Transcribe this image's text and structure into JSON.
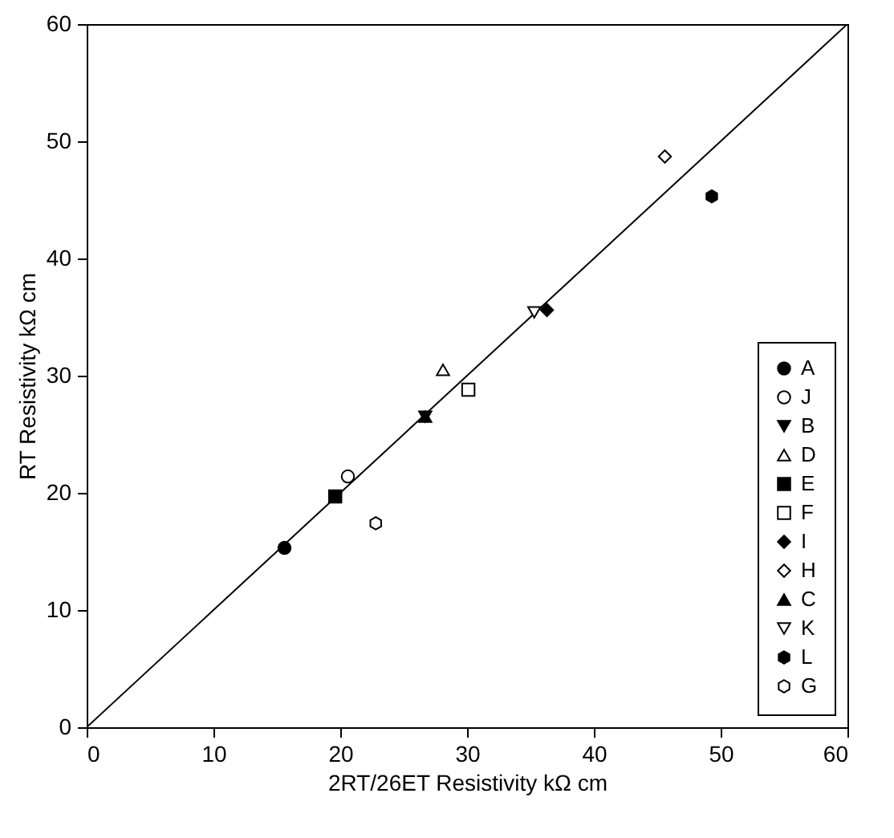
{
  "chart_data": {
    "type": "scatter",
    "xlabel": "2RT/26ET Resistivity kΩ cm",
    "ylabel": "RT Resistivity kΩ cm",
    "xlim": [
      0,
      60
    ],
    "ylim": [
      0,
      60
    ],
    "xticks": [
      0,
      10,
      20,
      30,
      40,
      50,
      60
    ],
    "yticks": [
      0,
      10,
      20,
      30,
      40,
      50,
      60
    ],
    "grid": false,
    "legend": "bottom right",
    "series": [
      {
        "name": "A",
        "color": "#000000",
        "marker": "circle",
        "x": [
          15.6
        ],
        "values": [
          15.3
        ]
      },
      {
        "name": "J",
        "color": "#ffffff",
        "marker": "circle",
        "x": [
          20.6
        ],
        "values": [
          21.4
        ]
      },
      {
        "name": "B",
        "color": "#000000",
        "marker": "triangle-down",
        "x": [
          26.7
        ],
        "values": [
          26.5
        ]
      },
      {
        "name": "D",
        "color": "#ffffff",
        "marker": "triangle",
        "x": [
          28.1
        ],
        "values": [
          30.5
        ]
      },
      {
        "name": "E",
        "color": "#000000",
        "marker": "square",
        "x": [
          19.6
        ],
        "values": [
          19.7
        ]
      },
      {
        "name": "F",
        "color": "#ffffff",
        "marker": "square",
        "x": [
          30.1
        ],
        "values": [
          28.8
        ]
      },
      {
        "name": "I",
        "color": "#000000",
        "marker": "diamond",
        "x": [
          36.3
        ],
        "values": [
          35.6
        ]
      },
      {
        "name": "H",
        "color": "#ffffff",
        "marker": "diamond",
        "x": [
          45.6
        ],
        "values": [
          48.7
        ]
      },
      {
        "name": "C",
        "color": "#000000",
        "marker": "triangle",
        "x": [
          26.7
        ],
        "values": [
          26.5
        ]
      },
      {
        "name": "K",
        "color": "#ffffff",
        "marker": "triangle-down",
        "x": [
          35.3
        ],
        "values": [
          35.4
        ]
      },
      {
        "name": "L",
        "color": "#000000",
        "x": [
          49.3
        ],
        "values": [
          45.3
        ]
      },
      {
        "name": "G",
        "color": "#ffffff",
        "x": [
          22.8
        ],
        "values": [
          17.4
        ]
      },
      {
        "type": "line",
        "color": "#000000",
        "marker": "none",
        "x": [
          0,
          60
        ],
        "values": [
          0,
          60
        ]
      }
    ]
  }
}
